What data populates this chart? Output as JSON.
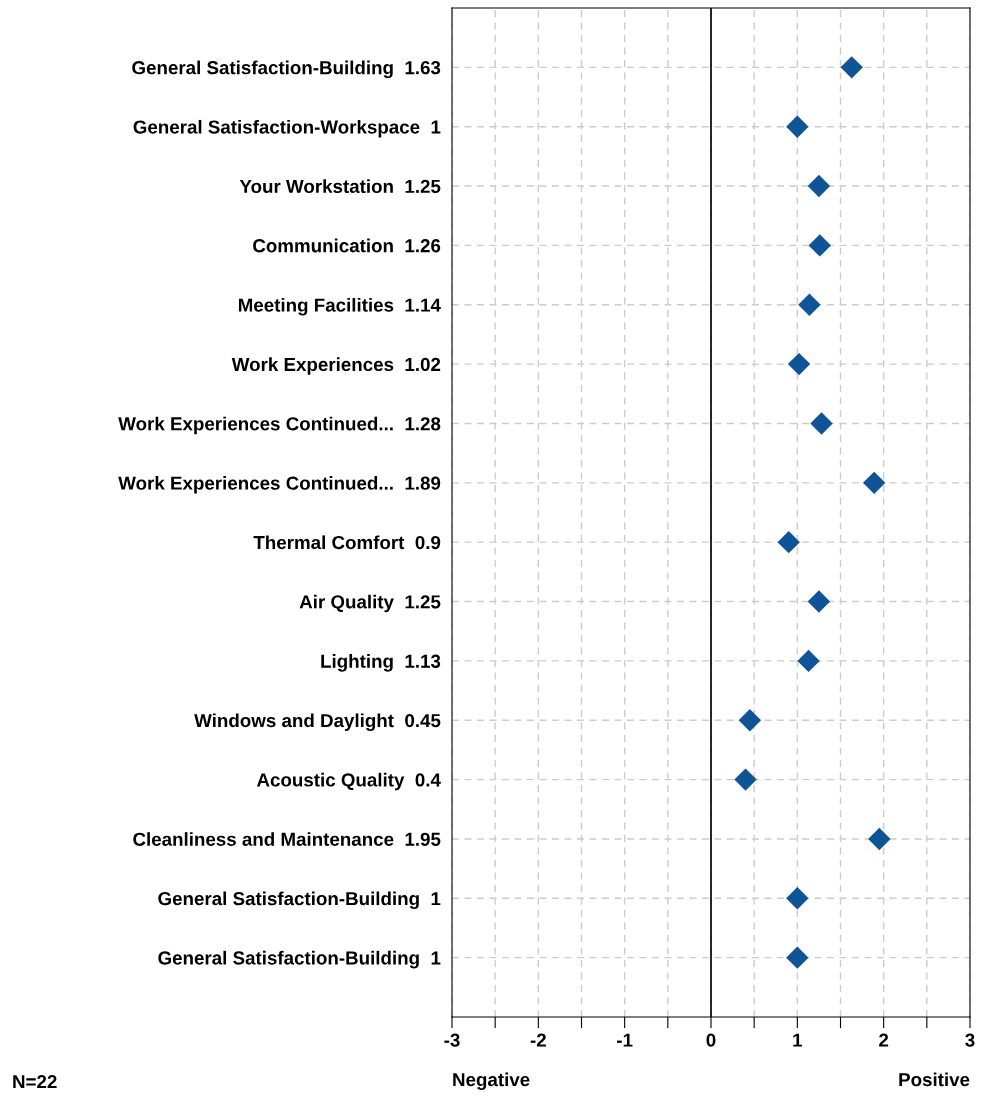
{
  "chart_data": {
    "type": "scatter",
    "orientation": "horizontal",
    "categories": [
      "General Satisfaction-Building  1.63",
      "General Satisfaction-Workspace  1",
      "Your Workstation  1.25",
      "Communication  1.26",
      "Meeting Facilities  1.14",
      "Work Experiences  1.02",
      "Work Experiences Continued...  1.28",
      "Work Experiences Continued...  1.89",
      "Thermal Comfort  0.9",
      "Air Quality  1.25",
      "Lighting  1.13",
      "Windows and Daylight  0.45",
      "Acoustic Quality  0.4",
      "Cleanliness and Maintenance  1.95",
      "General Satisfaction-Building  1",
      "General Satisfaction-Building  1"
    ],
    "values": [
      1.63,
      1,
      1.25,
      1.26,
      1.14,
      1.02,
      1.28,
      1.89,
      0.9,
      1.25,
      1.13,
      0.45,
      0.4,
      1.95,
      1,
      1
    ],
    "color": "#0f5496",
    "marker": "diamond",
    "xlim": [
      -3,
      3
    ],
    "xticks": [
      -3,
      {
        "value": -2.5,
        "label": null
      },
      -2,
      {
        "value": -1.5,
        "label": null
      },
      -1,
      {
        "value": -0.5,
        "label": null
      },
      0,
      {
        "value": 0.5,
        "label": null
      },
      1,
      {
        "value": 1.5,
        "label": null
      },
      2,
      {
        "value": 2.5,
        "label": null
      },
      3
    ],
    "grid": true,
    "ref_lines": [
      {
        "axis": "x",
        "value": 0,
        "color": "#000000",
        "line_style": "solid"
      }
    ],
    "annotations": [
      "Negative",
      "Positive",
      "N=22"
    ]
  }
}
